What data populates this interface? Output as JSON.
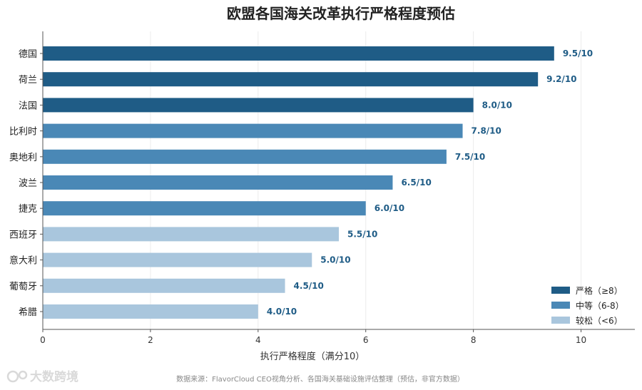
{
  "chart_data": {
    "type": "bar",
    "orientation": "horizontal",
    "title": "欧盟各国海关改革执行严格程度预估",
    "xlabel": "执行严格程度（满分10）",
    "ylabel": "",
    "xlim": [
      0,
      11
    ],
    "xticks": [
      0,
      2,
      4,
      6,
      8,
      10
    ],
    "grid": true,
    "legend_position": "bottom-right",
    "categories": [
      "德国",
      "荷兰",
      "法国",
      "比利时",
      "奥地利",
      "波兰",
      "捷克",
      "西班牙",
      "意大利",
      "葡萄牙",
      "希腊"
    ],
    "values": [
      9.5,
      9.2,
      8.0,
      7.8,
      7.5,
      6.5,
      6.0,
      5.5,
      5.0,
      4.5,
      4.0
    ],
    "value_labels": [
      "9.5/10",
      "9.2/10",
      "8.0/10",
      "7.8/10",
      "7.5/10",
      "6.5/10",
      "6.0/10",
      "5.5/10",
      "5.0/10",
      "4.5/10",
      "4.0/10"
    ],
    "groups": [
      {
        "label": "严格（≥8）",
        "color": "#1f5c86",
        "members": [
          "德国",
          "荷兰",
          "法国"
        ]
      },
      {
        "label": "中等（6-8）",
        "color": "#4a88b6",
        "members": [
          "比利时",
          "奥地利",
          "波兰",
          "捷克"
        ]
      },
      {
        "label": "较松（<6）",
        "color": "#a9c6dd",
        "members": [
          "西班牙",
          "意大利",
          "葡萄牙",
          "希腊"
        ]
      }
    ]
  },
  "footer": {
    "source": "数据来源：FlavorCloud CEO视角分析、各国海关基础设施评估整理（预估，非官方数据）",
    "watermark": "大数跨境"
  }
}
